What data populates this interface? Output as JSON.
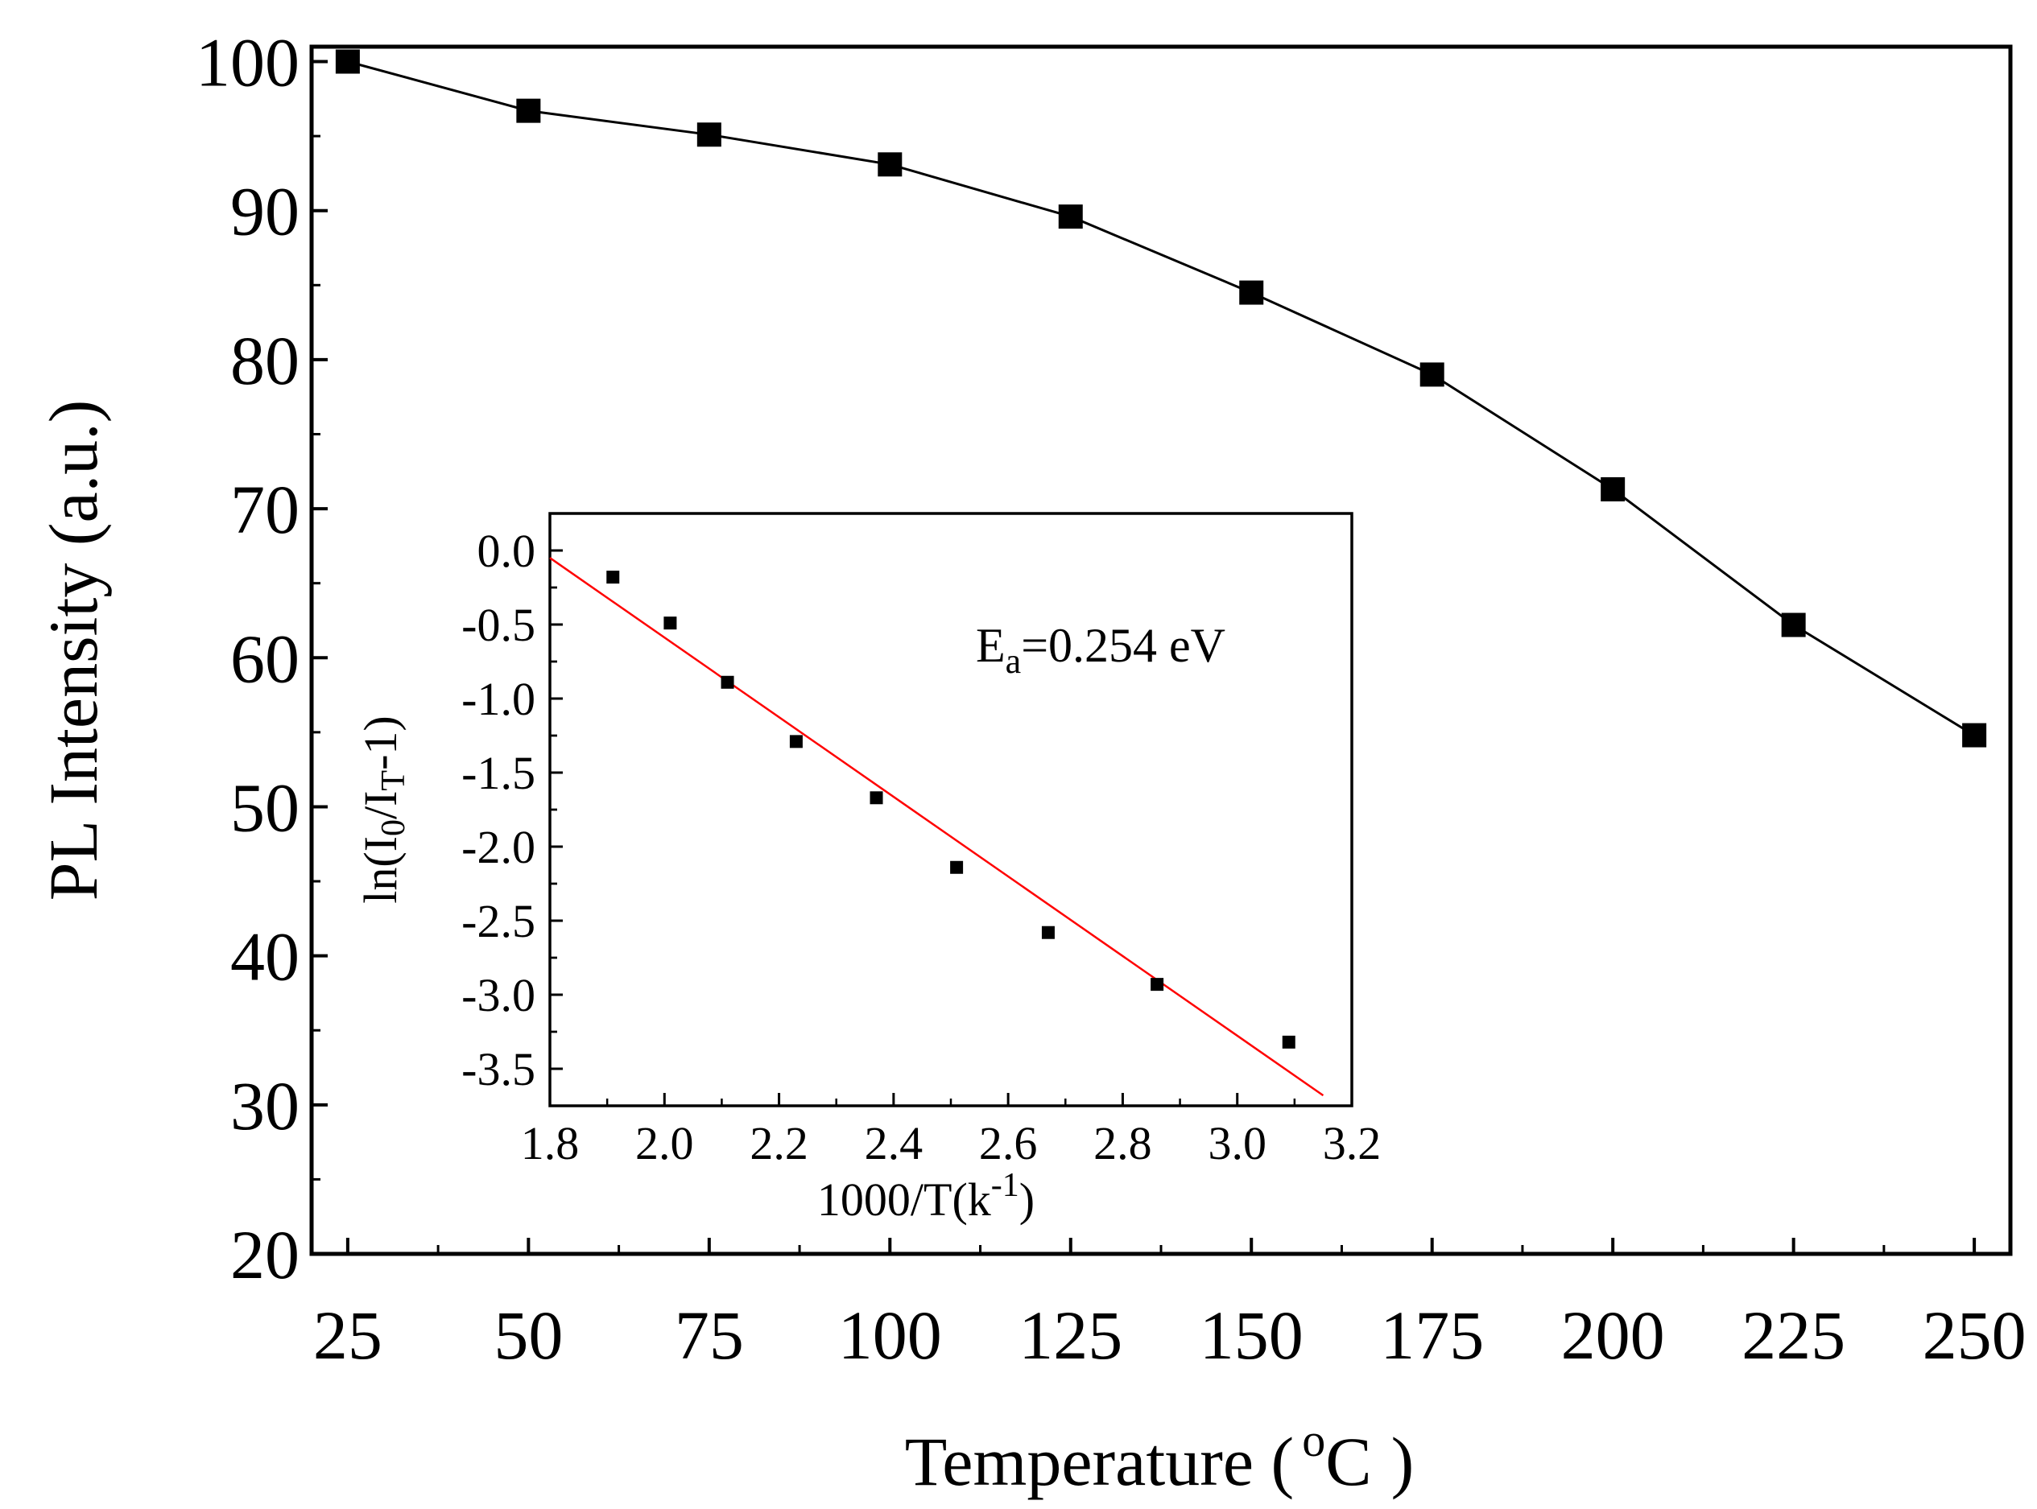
{
  "chart_data": [
    {
      "type": "line",
      "xlabel": {
        "main": "Temperature (",
        "sup": "o",
        "unit": "C",
        "close": ")"
      },
      "ylabel": "PL Intensity (a.u.)",
      "xlim": [
        20,
        255
      ],
      "ylim": [
        20,
        101
      ],
      "xticks": [
        25,
        50,
        75,
        100,
        125,
        150,
        175,
        200,
        225,
        250
      ],
      "yticks": [
        20,
        30,
        40,
        50,
        60,
        70,
        80,
        90,
        100
      ],
      "x": [
        25,
        50,
        75,
        100,
        125,
        150,
        175,
        200,
        225,
        250
      ],
      "y": [
        100,
        96.7,
        95.1,
        93.1,
        89.6,
        84.5,
        79.0,
        71.3,
        62.2,
        54.8
      ],
      "marker": "square",
      "line_color": "#000000"
    },
    {
      "type": "scatter",
      "role": "inset",
      "xlabel": {
        "main": "1000/T(k",
        "sup": "-1",
        "close": ")"
      },
      "ylabel": {
        "p1": "ln(I",
        "sub1": "0",
        "p2": "/I",
        "sub2": "T",
        "p3": "-1)"
      },
      "xlim": [
        1.8,
        3.2
      ],
      "ylim": [
        -3.75,
        0.25
      ],
      "xticks": [
        "1.8",
        "2.0",
        "2.2",
        "2.4",
        "2.6",
        "2.8",
        "3.0",
        "3.2"
      ],
      "yticks": [
        "0.0",
        "-0.5",
        "-1.0",
        "-1.5",
        "-2.0",
        "-2.5",
        "-3.0",
        "-3.5"
      ],
      "x": [
        1.91,
        2.01,
        2.11,
        2.23,
        2.37,
        2.51,
        2.67,
        2.86,
        3.09
      ],
      "y": [
        -0.18,
        -0.49,
        -0.89,
        -1.29,
        -1.67,
        -2.14,
        -2.58,
        -2.93,
        -3.32
      ],
      "fit": {
        "x": [
          1.8,
          3.15
        ],
        "y": [
          -0.05,
          -3.68
        ],
        "color": "#ff0000"
      },
      "annotation": {
        "main": "E",
        "sub": "a",
        "rest": "=0.254 eV"
      }
    }
  ]
}
